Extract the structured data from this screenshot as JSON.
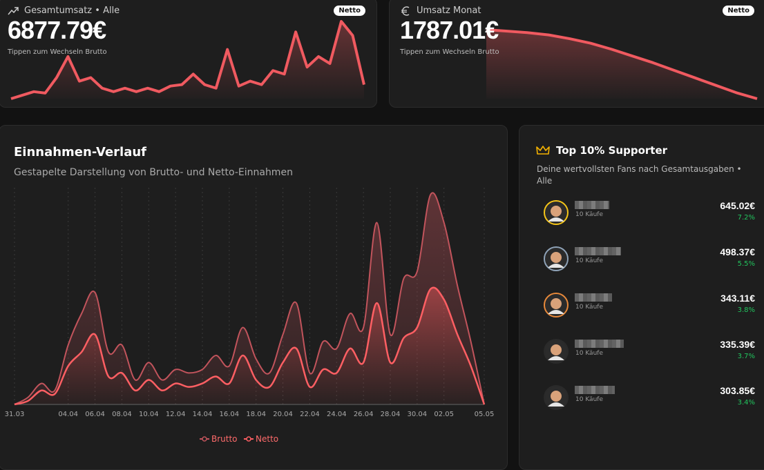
{
  "stat_cards": [
    {
      "title": "Gesamtumsatz • Alle",
      "badge": "Netto",
      "value": "6877.79€",
      "hint": "Tippen zum Wechseln Brutto",
      "color": "#f05a60",
      "sparkline": [
        0,
        5,
        10,
        8,
        30,
        60,
        25,
        30,
        15,
        10,
        15,
        10,
        15,
        10,
        18,
        20,
        35,
        20,
        15,
        70,
        18,
        25,
        20,
        40,
        35,
        95,
        45,
        60,
        50,
        110,
        90,
        20
      ]
    },
    {
      "title": "Umsatz Monat",
      "badge": "Netto",
      "value": "1787.01€",
      "hint": "Tippen zum Wechseln Brutto",
      "color": "#f05a60",
      "sparkline": [
        92,
        90,
        88,
        85,
        80,
        74,
        66,
        57,
        48,
        38,
        28,
        18,
        8,
        0
      ]
    }
  ],
  "chart_data": {
    "type": "stacked_area",
    "title": "Einnahmen-Verlauf",
    "subtitle": "Gestapelte Darstellung von Brutto- und Netto-Einnahmen",
    "categories": [
      "31.03",
      null,
      null,
      null,
      "04.04",
      null,
      "06.04",
      null,
      "08.04",
      null,
      "10.04",
      null,
      "12.04",
      null,
      "14.04",
      null,
      "16.04",
      null,
      "18.04",
      null,
      "20.04",
      null,
      "22.04",
      null,
      "24.04",
      null,
      "26.04",
      null,
      "28.04",
      null,
      "30.04",
      null,
      "02.05",
      null,
      null,
      "05.05"
    ],
    "series": [
      {
        "name": "Netto",
        "color": "#ff5f63",
        "values": [
          0,
          5,
          20,
          15,
          55,
          75,
          100,
          40,
          45,
          20,
          35,
          20,
          30,
          25,
          30,
          40,
          30,
          70,
          35,
          25,
          60,
          80,
          25,
          50,
          45,
          80,
          60,
          145,
          60,
          95,
          110,
          165,
          150,
          100,
          55,
          0
        ]
      },
      {
        "name": "Brutto",
        "color": "#c2545c",
        "values": [
          0,
          5,
          10,
          5,
          30,
          55,
          60,
          35,
          40,
          15,
          25,
          15,
          20,
          20,
          20,
          30,
          25,
          40,
          30,
          20,
          40,
          65,
          20,
          40,
          35,
          50,
          50,
          115,
          40,
          85,
          80,
          135,
          110,
          70,
          35,
          0
        ]
      }
    ],
    "legend": "bottom"
  },
  "supporters": {
    "title": "Top 10% Supporter",
    "description": "Deine wertvollsten Fans nach Gesamtausgaben • Alle",
    "rows": [
      {
        "purchases": "10 Käufe",
        "amount": "645.02€",
        "share": "7.2%",
        "ring": "#f5c518"
      },
      {
        "purchases": "10 Käufe",
        "amount": "498.37€",
        "share": "5.5%",
        "ring": "#8fa3b8"
      },
      {
        "purchases": "10 Käufe",
        "amount": "343.11€",
        "share": "3.8%",
        "ring": "#e8893a"
      },
      {
        "purchases": "10 Käufe",
        "amount": "335.39€",
        "share": "3.7%",
        "ring": "#2a2a2a"
      },
      {
        "purchases": "10 Käufe",
        "amount": "303.85€",
        "share": "3.4%",
        "ring": "#2a2a2a"
      }
    ]
  }
}
